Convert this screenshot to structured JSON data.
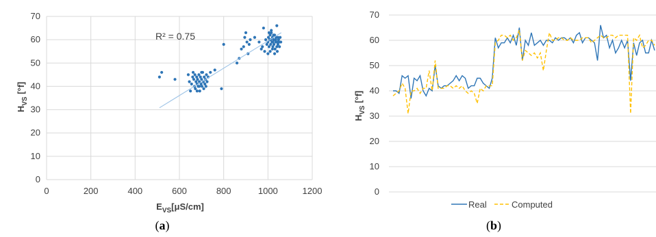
{
  "chart_data": [
    {
      "panel": "a",
      "type": "scatter",
      "caption_prefix": "(",
      "caption_letter": "a",
      "caption_suffix": ")",
      "xlabel_main": "E",
      "xlabel_sub": "VS",
      "xlabel_unit": "[μS/cm]",
      "ylabel_main": "H",
      "ylabel_sub": "VS",
      "ylabel_unit": " [°f]",
      "xlim": [
        0,
        1200
      ],
      "ylim": [
        0,
        70
      ],
      "xticks": [
        0,
        200,
        400,
        600,
        800,
        1000,
        1200
      ],
      "yticks": [
        0,
        10,
        20,
        30,
        40,
        50,
        60,
        70
      ],
      "grid": true,
      "annotation": "R² = 0.75",
      "trendline": {
        "x": [
          510,
          1060
        ],
        "y": [
          30.8,
          63.0
        ]
      },
      "color": "#2E75B6",
      "trend_color": "#9DC3E6",
      "points": [
        [
          510,
          44
        ],
        [
          520,
          46
        ],
        [
          580,
          43
        ],
        [
          640,
          45
        ],
        [
          645,
          42
        ],
        [
          650,
          38
        ],
        [
          655,
          41
        ],
        [
          660,
          44
        ],
        [
          662,
          46
        ],
        [
          665,
          43
        ],
        [
          668,
          40
        ],
        [
          670,
          45
        ],
        [
          672,
          39
        ],
        [
          675,
          42
        ],
        [
          678,
          44
        ],
        [
          680,
          41
        ],
        [
          682,
          43
        ],
        [
          685,
          40
        ],
        [
          688,
          45
        ],
        [
          690,
          42
        ],
        [
          692,
          38
        ],
        [
          695,
          44
        ],
        [
          698,
          41
        ],
        [
          700,
          43
        ],
        [
          702,
          40
        ],
        [
          705,
          46
        ],
        [
          708,
          42
        ],
        [
          710,
          39
        ],
        [
          712,
          44
        ],
        [
          715,
          41
        ],
        [
          718,
          43
        ],
        [
          720,
          40
        ],
        [
          722,
          45
        ],
        [
          725,
          42
        ],
        [
          700,
          46
        ],
        [
          690,
          40
        ],
        [
          680,
          38
        ],
        [
          730,
          44
        ],
        [
          740,
          46
        ],
        [
          760,
          47
        ],
        [
          790,
          39
        ],
        [
          800,
          58
        ],
        [
          860,
          50
        ],
        [
          870,
          52
        ],
        [
          880,
          56
        ],
        [
          890,
          57
        ],
        [
          895,
          61
        ],
        [
          900,
          63
        ],
        [
          905,
          59
        ],
        [
          910,
          54
        ],
        [
          915,
          58
        ],
        [
          920,
          60
        ],
        [
          940,
          61
        ],
        [
          960,
          59
        ],
        [
          970,
          56
        ],
        [
          975,
          57
        ],
        [
          980,
          65
        ],
        [
          985,
          55
        ],
        [
          990,
          60
        ],
        [
          995,
          58
        ],
        [
          1000,
          59
        ],
        [
          1002,
          61
        ],
        [
          1005,
          57
        ],
        [
          1008,
          60
        ],
        [
          1010,
          62
        ],
        [
          1012,
          58
        ],
        [
          1015,
          63
        ],
        [
          1018,
          59
        ],
        [
          1020,
          61
        ],
        [
          1022,
          57
        ],
        [
          1025,
          60
        ],
        [
          1027,
          58
        ],
        [
          1030,
          62
        ],
        [
          1032,
          56
        ],
        [
          1035,
          59
        ],
        [
          1037,
          61
        ],
        [
          1040,
          66
        ],
        [
          1042,
          55
        ],
        [
          1045,
          58
        ],
        [
          1048,
          60
        ],
        [
          1050,
          59
        ],
        [
          1052,
          57
        ],
        [
          1055,
          61
        ],
        [
          1058,
          59
        ],
        [
          1000,
          54
        ],
        [
          1010,
          55
        ],
        [
          1020,
          56
        ],
        [
          1030,
          54
        ],
        [
          1040,
          57
        ],
        [
          1005,
          63
        ],
        [
          1015,
          64
        ],
        [
          1025,
          62
        ],
        [
          1035,
          60
        ],
        [
          1045,
          61
        ],
        [
          1012,
          60
        ],
        [
          1022,
          59
        ],
        [
          1032,
          60
        ],
        [
          1042,
          59
        ]
      ]
    },
    {
      "panel": "b",
      "type": "line",
      "caption_prefix": "(",
      "caption_letter": "b",
      "caption_suffix": ")",
      "ylabel_main": "H",
      "ylabel_sub": "VS",
      "ylabel_unit": " [°f]",
      "ylim": [
        0,
        70
      ],
      "yticks": [
        0,
        10,
        20,
        30,
        40,
        50,
        60,
        70
      ],
      "grid": true,
      "legend_position": "bottom",
      "series": [
        {
          "name": "Real",
          "color": "#2E75B6",
          "dash": "none",
          "values": [
            40,
            40,
            39,
            46,
            45,
            46,
            37,
            45,
            44,
            46,
            40,
            38,
            41,
            40,
            50,
            42,
            41,
            42,
            42,
            43,
            44,
            46,
            44,
            46,
            45,
            41,
            42,
            42,
            45,
            45,
            43,
            42,
            41,
            45,
            61,
            57,
            59,
            59,
            61,
            59,
            62,
            58,
            65,
            52,
            60,
            58,
            63,
            58,
            59,
            60,
            58,
            60,
            60,
            59,
            61,
            60,
            61,
            61,
            60,
            61,
            59,
            62,
            63,
            59,
            61,
            61,
            60,
            59,
            52,
            66,
            61,
            62,
            57,
            60,
            55,
            57,
            60,
            57,
            60,
            44,
            59,
            54,
            59,
            60,
            55,
            55,
            60,
            56
          ]
        },
        {
          "name": "Computed",
          "color": "#FFC000",
          "dash": "5,3",
          "values": [
            38,
            39,
            40,
            43,
            41,
            31,
            40,
            40,
            41,
            39,
            41,
            41,
            48,
            40,
            52,
            41,
            41,
            41,
            42,
            42,
            41,
            42,
            41,
            42,
            40,
            39,
            40,
            39,
            35,
            41,
            40,
            42,
            42,
            42,
            59,
            60,
            62,
            62,
            61,
            62,
            60,
            61,
            64,
            52,
            56,
            55,
            54,
            55,
            53,
            55,
            48,
            56,
            63,
            60,
            60,
            61,
            61,
            60,
            60,
            61,
            60,
            60,
            60,
            61,
            61,
            61,
            59,
            60,
            61,
            62,
            61,
            61,
            62,
            62,
            61,
            62,
            62,
            62,
            62,
            31,
            61,
            60,
            62,
            57,
            58,
            60,
            60,
            58
          ]
        }
      ]
    }
  ]
}
